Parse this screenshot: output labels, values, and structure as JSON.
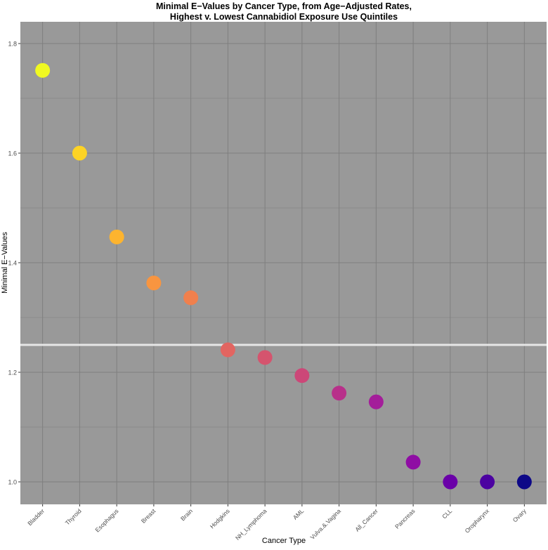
{
  "chart_data": {
    "type": "scatter",
    "title_lines": [
      "Minimal E−Values by Cancer Type, from Age−Adjusted Rates,",
      "Highest v. Lowest Cannabidiol Exposure Use Quintiles"
    ],
    "xlabel": "Cancer Type",
    "ylabel": "Minimal E−Values",
    "categories": [
      "Bladder",
      "Thyroid",
      "Esophagus",
      "Breast",
      "Brain",
      "Hodgkins",
      "NH_Lymphoma",
      "AML",
      "Vulva.&.Vagina",
      "All_Cancer",
      "Pancreas",
      "CLL",
      "Oropharynx",
      "Ovary"
    ],
    "values": [
      1.751,
      1.6,
      1.447,
      1.363,
      1.336,
      1.241,
      1.227,
      1.194,
      1.162,
      1.146,
      1.036,
      1.0,
      1.0,
      1.0
    ],
    "colors": [
      "#f0f921",
      "#fdd325",
      "#fdb42f",
      "#f89540",
      "#f0804d",
      "#e26561",
      "#d5546e",
      "#cc4778",
      "#b8308a",
      "#a41e9a",
      "#8f0da4",
      "#6a00a8",
      "#4c02a1",
      "#0d0887"
    ],
    "ylim": [
      0.96,
      1.835
    ],
    "yticks": [
      "1.0",
      "1.2",
      "1.4",
      "1.6",
      "1.8"
    ],
    "ytick_values": [
      1.0,
      1.2,
      1.4,
      1.6,
      1.8
    ],
    "minor_y": [
      1.1,
      1.3,
      1.5,
      1.7
    ],
    "reference_line": 1.25,
    "grid": true,
    "background": "#999999",
    "gridline_color": "#7f7f7f",
    "reference_color": "#e6e6e6"
  }
}
